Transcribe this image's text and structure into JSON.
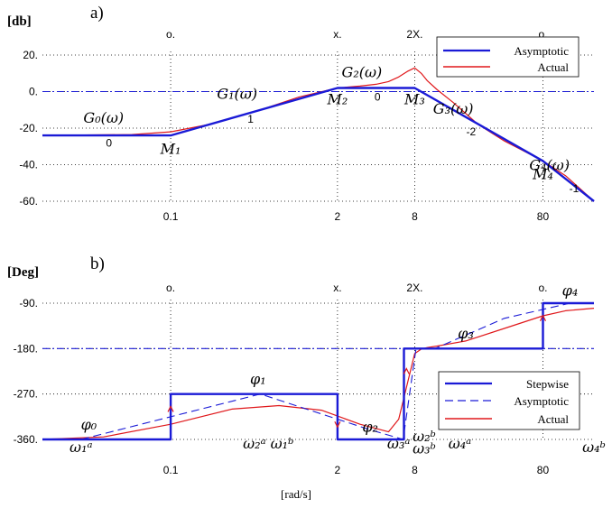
{
  "chart_data": [
    {
      "type": "line",
      "panel_label": "a)",
      "unit_label": "[db]",
      "x_scale": "log",
      "xlim": [
        0.01,
        200
      ],
      "ylim": [
        -60,
        20
      ],
      "grid": true,
      "legend_position": "top-right",
      "x_ticks": [
        {
          "x": 0.1,
          "label": "0.1",
          "top": "o."
        },
        {
          "x": 2,
          "label": "2",
          "top": "x."
        },
        {
          "x": 8,
          "label": "8",
          "top": "2X."
        },
        {
          "x": 80,
          "label": "80",
          "top": "o."
        }
      ],
      "y_ticks": [
        {
          "y": 20,
          "label": "20."
        },
        {
          "y": 0,
          "label": "0."
        },
        {
          "y": -20,
          "label": "-20."
        },
        {
          "y": -40,
          "label": "-40."
        },
        {
          "y": -60,
          "label": "-60."
        }
      ],
      "reference_line_y": 0,
      "series": [
        {
          "name": "Asymptotic",
          "color": "#1a1ad6",
          "style": "solid",
          "x": [
            0.01,
            0.1,
            2,
            8,
            80,
            200
          ],
          "y": [
            -24,
            -24,
            2,
            2,
            -38,
            -60
          ]
        },
        {
          "name": "Actual",
          "color": "#e0181b",
          "style": "solid",
          "x": [
            0.01,
            0.05,
            0.1,
            0.2,
            0.5,
            1,
            2,
            3,
            4,
            5,
            6,
            7,
            8,
            9,
            10,
            12,
            16,
            25,
            40,
            80,
            120,
            200
          ],
          "y": [
            -24,
            -23.5,
            -22,
            -18,
            -10,
            -3,
            2,
            3,
            4,
            5.5,
            8,
            11,
            13,
            10,
            6,
            1,
            -6,
            -18,
            -27,
            -38,
            -46,
            -60
          ]
        }
      ],
      "annotations": [
        {
          "text": "G₀(ω)",
          "x": 0.03,
          "y": -17,
          "kind": "math"
        },
        {
          "text": "G₁(ω)",
          "x": 0.33,
          "y": -4,
          "kind": "math"
        },
        {
          "text": "G₂(ω)",
          "x": 3.1,
          "y": 8,
          "kind": "math"
        },
        {
          "text": "G₃(ω)",
          "x": 16,
          "y": -12,
          "kind": "math"
        },
        {
          "text": "G₄(ω)",
          "x": 90,
          "y": -43,
          "kind": "math"
        },
        {
          "text": "M₁",
          "x": 0.1,
          "y": -34,
          "kind": "math"
        },
        {
          "text": "M₂",
          "x": 2,
          "y": -7,
          "kind": "math"
        },
        {
          "text": "M₃",
          "x": 8,
          "y": -7,
          "kind": "math"
        },
        {
          "text": "M₄",
          "x": 80,
          "y": -48,
          "kind": "math"
        },
        {
          "text": "0",
          "x": 0.033,
          "y": -30,
          "kind": "plain"
        },
        {
          "text": "1",
          "x": 0.42,
          "y": -17,
          "kind": "plain"
        },
        {
          "text": "0",
          "x": 4.1,
          "y": -5,
          "kind": "plain"
        },
        {
          "text": "-2",
          "x": 22,
          "y": -24,
          "kind": "plain"
        },
        {
          "text": "-1",
          "x": 140,
          "y": -55,
          "kind": "plain"
        }
      ]
    },
    {
      "type": "line",
      "panel_label": "b)",
      "unit_label": "[Deg]",
      "x_scale": "log",
      "xlim": [
        0.01,
        200
      ],
      "ylim": [
        -360,
        -90
      ],
      "grid": true,
      "legend_position": "bottom-right",
      "x_axis_label": "[rad/s]",
      "x_ticks": [
        {
          "x": 0.1,
          "label": "0.1",
          "top": "o."
        },
        {
          "x": 2,
          "label": "2",
          "top": "x."
        },
        {
          "x": 8,
          "label": "8",
          "top": "2X."
        },
        {
          "x": 80,
          "label": "80",
          "top": "o."
        }
      ],
      "y_ticks": [
        {
          "y": -90,
          "label": "-90."
        },
        {
          "y": -180,
          "label": "-180."
        },
        {
          "y": -270,
          "label": "-270."
        },
        {
          "y": -360,
          "label": "-360."
        }
      ],
      "reference_line_y": -180,
      "series": [
        {
          "name": "Stepwise",
          "color": "#1a1ad6",
          "style": "solid",
          "x": [
            0.01,
            0.1,
            0.1,
            2,
            2,
            6.6,
            6.6,
            80,
            80,
            200
          ],
          "y": [
            -360,
            -360,
            -270,
            -270,
            -360,
            -360,
            -180,
            -180,
            -90,
            -90
          ]
        },
        {
          "name": "Asymptotic",
          "color": "#1a1ad6",
          "style": "dashed",
          "x": [
            0.02,
            0.5,
            3.5,
            6.5,
            8.2,
            11.5,
            40,
            130
          ],
          "y": [
            -360,
            -270,
            -340,
            -360,
            -180,
            -180,
            -120,
            -90
          ]
        },
        {
          "name": "Actual",
          "color": "#e0181b",
          "style": "solid",
          "x": [
            0.01,
            0.03,
            0.1,
            0.3,
            0.7,
            1.5,
            3,
            5,
            6,
            7,
            8,
            9,
            10,
            12,
            20,
            40,
            80,
            120,
            200
          ],
          "y": [
            -360,
            -355,
            -330,
            -300,
            -293,
            -302,
            -330,
            -345,
            -320,
            -250,
            -190,
            -181,
            -178,
            -175,
            -165,
            -140,
            -115,
            -105,
            -100
          ]
        }
      ],
      "annotations": [
        {
          "text": "φ₀",
          "x": 0.023,
          "y": -340,
          "kind": "math"
        },
        {
          "text": "φ₁",
          "x": 0.48,
          "y": -250,
          "kind": "math"
        },
        {
          "text": "φ₂",
          "x": 3.6,
          "y": -345,
          "kind": "math"
        },
        {
          "text": "φ₃",
          "x": 20,
          "y": -160,
          "kind": "math"
        },
        {
          "text": "φ₄",
          "x": 130,
          "y": -75,
          "kind": "math"
        },
        {
          "text": "ω₁ᵃ",
          "x": 0.02,
          "y": -385,
          "kind": "math"
        },
        {
          "text": "ω₂ᵃ",
          "x": 0.45,
          "y": -378,
          "kind": "math"
        },
        {
          "text": "ω₁ᵇ",
          "x": 0.74,
          "y": -378,
          "kind": "math"
        },
        {
          "text": "ω₃ᵃ",
          "x": 6,
          "y": -378,
          "kind": "math"
        },
        {
          "text": "ω₂ᵇ",
          "x": 9.5,
          "y": -364,
          "kind": "math"
        },
        {
          "text": "ω₃ᵇ",
          "x": 9.5,
          "y": -388,
          "kind": "math"
        },
        {
          "text": "ω₄ᵃ",
          "x": 18,
          "y": -378,
          "kind": "math"
        },
        {
          "text": "ω₄ᵇ",
          "x": 200,
          "y": -385,
          "kind": "math"
        }
      ]
    }
  ]
}
